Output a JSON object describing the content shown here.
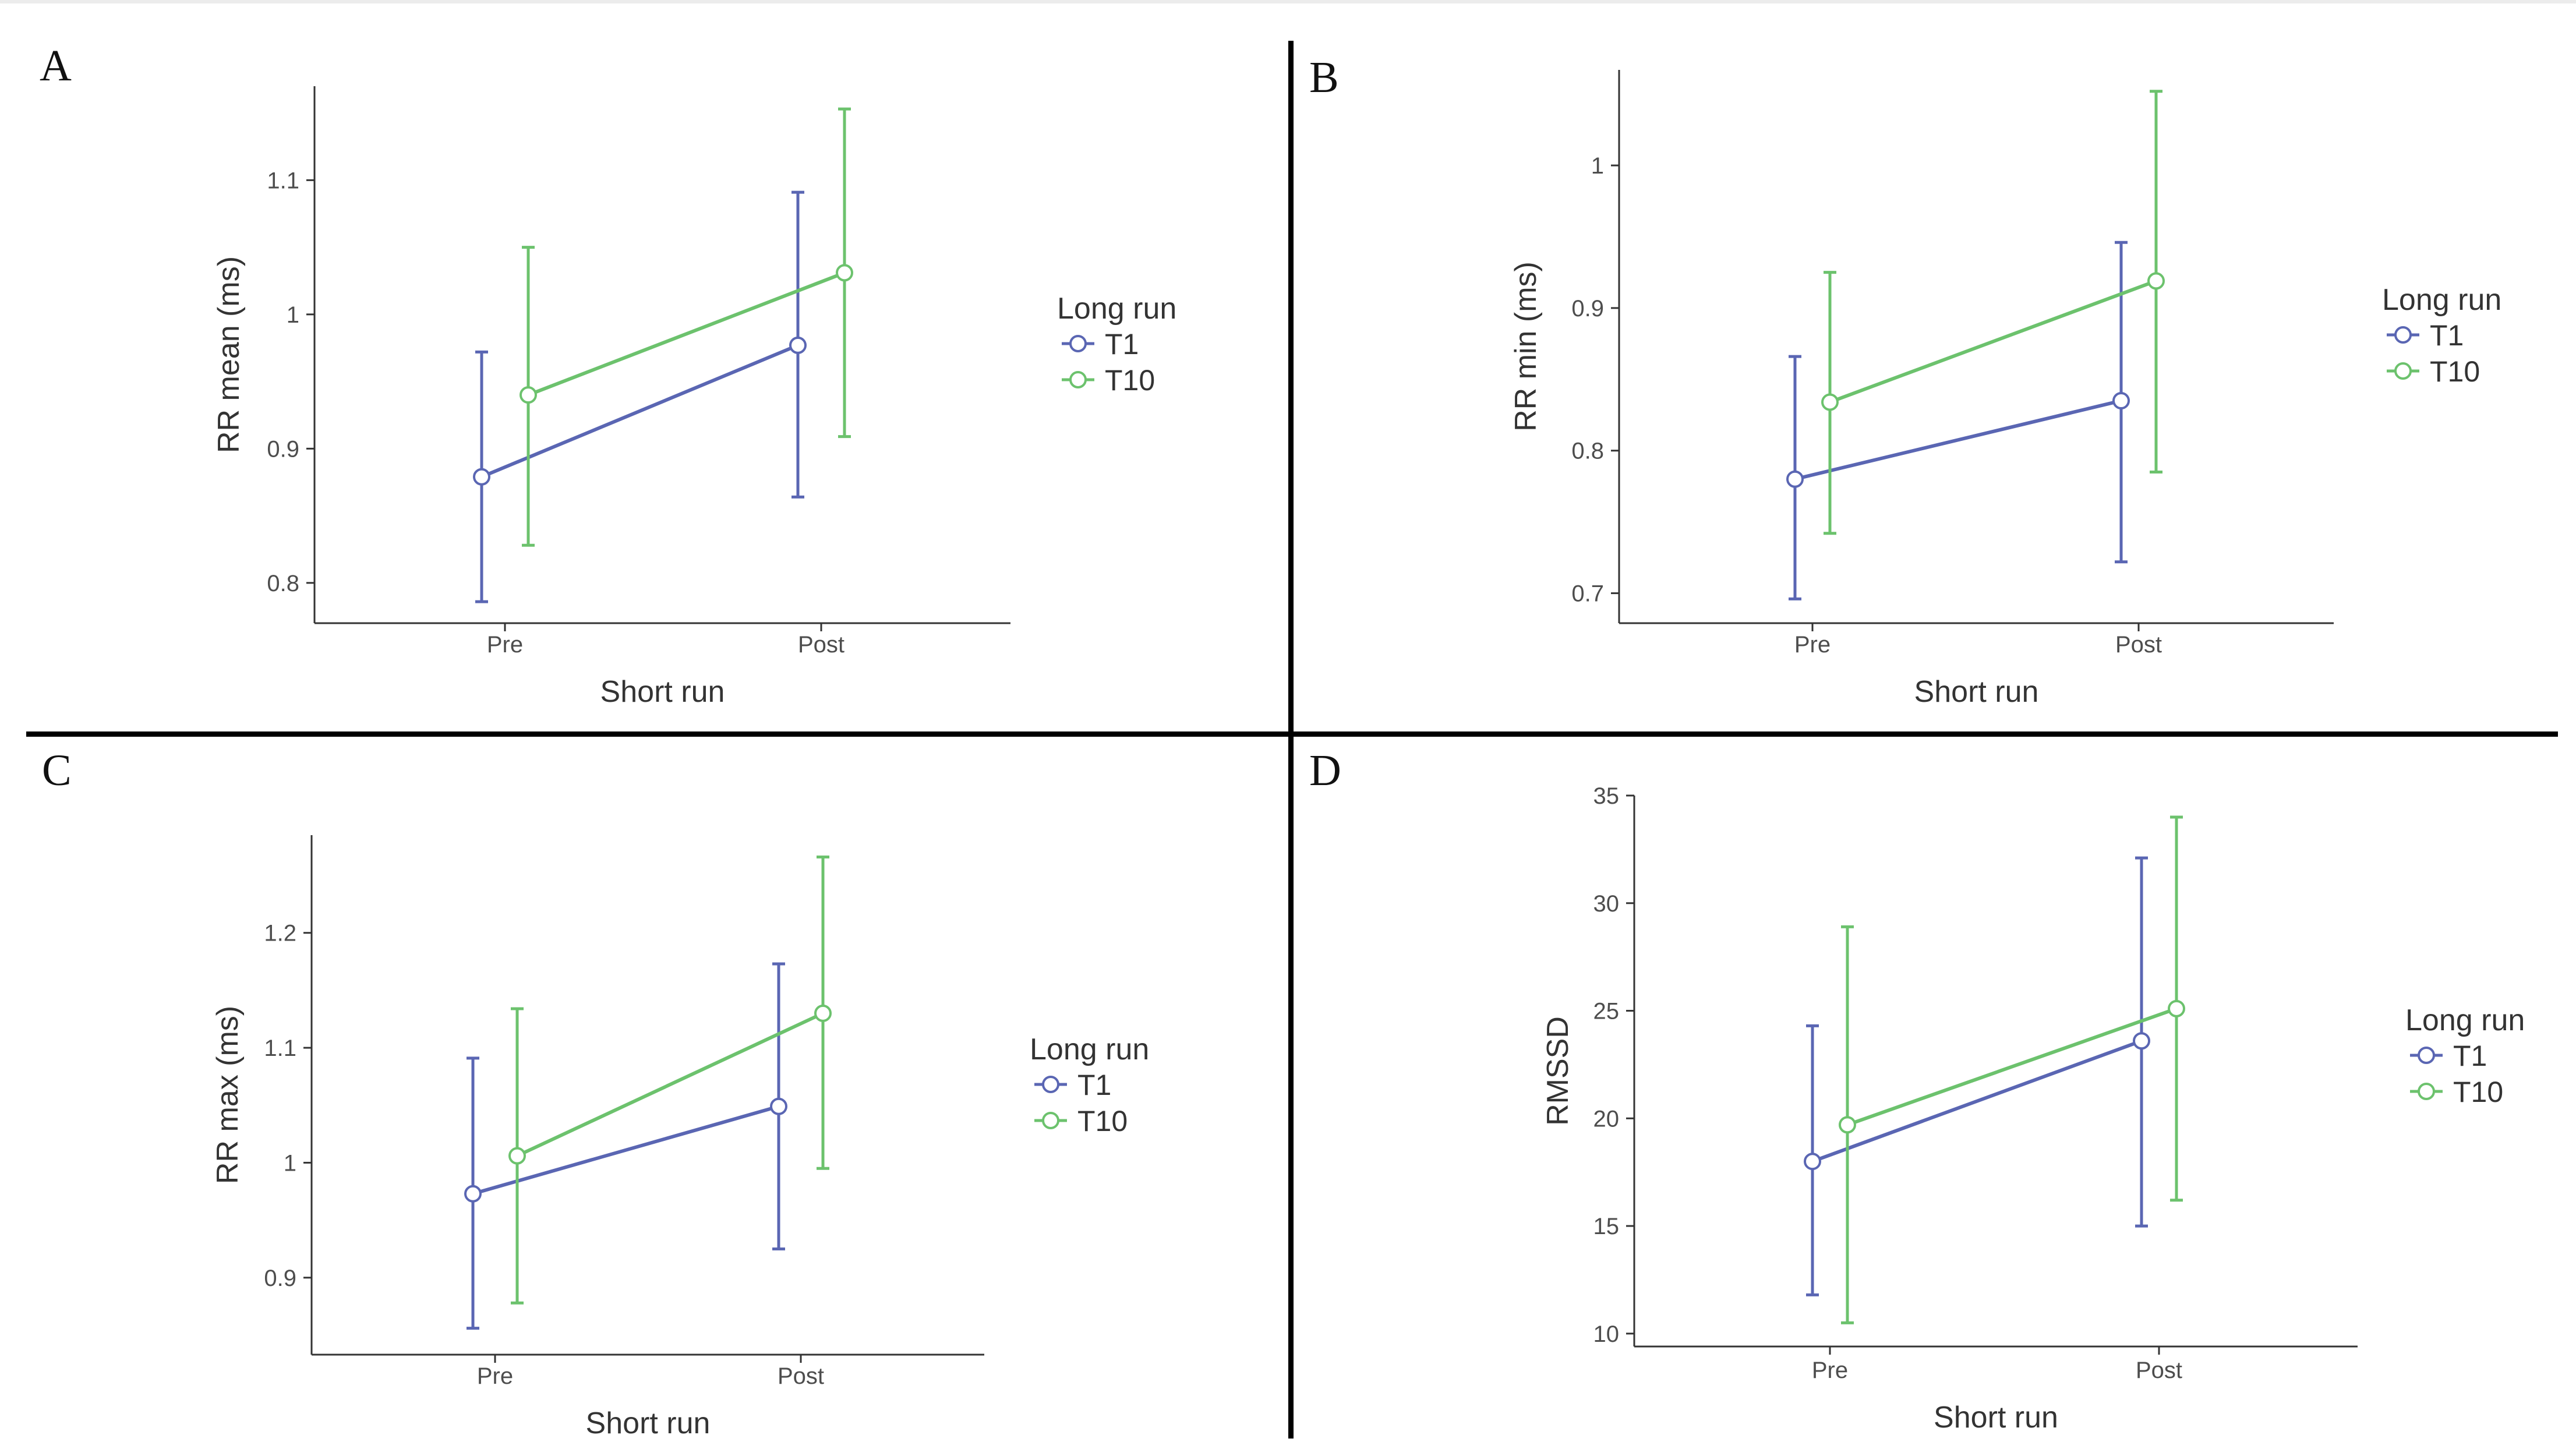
{
  "panels": [
    {
      "letter": "A",
      "legend": {
        "title": "Long run",
        "items": [
          "T1",
          "T10"
        ]
      },
      "chart_data": {
        "type": "line",
        "title": "",
        "xlabel": "Short run",
        "ylabel": "RR mean (ms)",
        "categories": [
          "Pre",
          "Post"
        ],
        "ylim": [
          0.77,
          1.17
        ],
        "yticks": [
          0.8,
          0.9,
          1.0,
          1.1
        ],
        "grid": false,
        "legend_position": "right",
        "series": [
          {
            "name": "T1",
            "color": "#5a66b3",
            "values": [
              0.879,
              0.977
            ],
            "lower": [
              0.786,
              0.864
            ],
            "upper": [
              0.972,
              1.091
            ]
          },
          {
            "name": "T10",
            "color": "#6cc26d",
            "values": [
              0.94,
              1.031
            ],
            "lower": [
              0.828,
              0.909
            ],
            "upper": [
              1.05,
              1.153
            ]
          }
        ]
      }
    },
    {
      "letter": "B",
      "legend": {
        "title": "Long run",
        "items": [
          "T1",
          "T10"
        ]
      },
      "chart_data": {
        "type": "line",
        "title": "",
        "xlabel": "Short run",
        "ylabel": "RR min (ms)",
        "categories": [
          "Pre",
          "Post"
        ],
        "ylim": [
          0.679,
          1.067
        ],
        "yticks": [
          0.7,
          0.8,
          0.9,
          1.0
        ],
        "grid": false,
        "legend_position": "right",
        "series": [
          {
            "name": "T1",
            "color": "#5a66b3",
            "values": [
              0.78,
              0.835
            ],
            "lower": [
              0.696,
              0.722
            ],
            "upper": [
              0.866,
              0.946
            ]
          },
          {
            "name": "T10",
            "color": "#6cc26d",
            "values": [
              0.834,
              0.919
            ],
            "lower": [
              0.742,
              0.785
            ],
            "upper": [
              0.925,
              1.052
            ]
          }
        ]
      }
    },
    {
      "letter": "C",
      "legend": {
        "title": "Long run",
        "items": [
          "T1",
          "T10"
        ]
      },
      "chart_data": {
        "type": "line",
        "title": "",
        "xlabel": "Short run",
        "ylabel": "RR max (ms)",
        "categories": [
          "Pre",
          "Post"
        ],
        "ylim": [
          0.833,
          1.285
        ],
        "yticks": [
          0.9,
          1.0,
          1.1,
          1.2
        ],
        "grid": false,
        "legend_position": "right",
        "series": [
          {
            "name": "T1",
            "color": "#5a66b3",
            "values": [
              0.973,
              1.049
            ],
            "lower": [
              0.856,
              0.925
            ],
            "upper": [
              1.091,
              1.173
            ]
          },
          {
            "name": "T10",
            "color": "#6cc26d",
            "values": [
              1.006,
              1.13
            ],
            "lower": [
              0.878,
              0.995
            ],
            "upper": [
              1.134,
              1.266
            ]
          }
        ]
      }
    },
    {
      "letter": "D",
      "legend": {
        "title": "Long run",
        "items": [
          "T1",
          "T10"
        ]
      },
      "chart_data": {
        "type": "line",
        "title": "",
        "xlabel": "Short run",
        "ylabel": "RMSSD",
        "categories": [
          "Pre",
          "Post"
        ],
        "ylim": [
          9.4,
          35.0
        ],
        "yticks": [
          10,
          15,
          20,
          25,
          30,
          35
        ],
        "grid": false,
        "legend_position": "right",
        "series": [
          {
            "name": "T1",
            "color": "#5a66b3",
            "values": [
              18.0,
              23.6
            ],
            "lower": [
              11.8,
              15.0
            ],
            "upper": [
              24.3,
              32.1
            ]
          },
          {
            "name": "T10",
            "color": "#6cc26d",
            "values": [
              19.7,
              25.1
            ],
            "lower": [
              10.5,
              16.2
            ],
            "upper": [
              28.9,
              34.0
            ]
          }
        ]
      }
    }
  ]
}
